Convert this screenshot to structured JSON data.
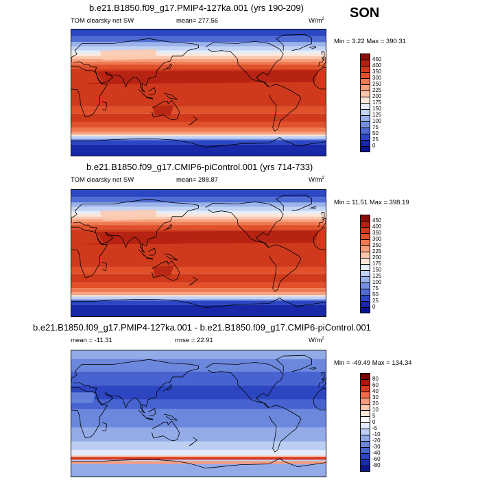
{
  "season": "SON",
  "panels": [
    {
      "title": "b.e21.B1850.f09_g17.PMIP4-127ka.001 (yrs 190-209)",
      "left_label": "TOM clearsky net SW",
      "center_label": "mean= 277.56",
      "units": "W/m",
      "units_sup": "2",
      "minmax": "Min =   3.22 Max = 390.31",
      "map_type": "absolute",
      "colorbar_labels": [
        "450",
        "400",
        "350",
        "300",
        "250",
        "225",
        "200",
        "175",
        "150",
        "125",
        "100",
        "75",
        "50",
        "25",
        "0"
      ],
      "colorbar_colors": [
        "#8b0d0b",
        "#b22012",
        "#d03a1c",
        "#e0512b",
        "#ee7a52",
        "#f6a07d",
        "#fbc8ae",
        "#fde7da",
        "#e5ecfa",
        "#c1d2f4",
        "#9bb3ea",
        "#7690df",
        "#4f6bd4",
        "#2b47c3",
        "#1828a6",
        "#0b148c"
      ]
    },
    {
      "title": "b.e21.B1850.f09_g17.CMIP6-piControl.001 (yrs 714-733)",
      "left_label": "TOM clearsky net SW",
      "center_label": "mean= 288.87",
      "units": "W/m",
      "units_sup": "2",
      "minmax": "Min =  11.51 Max = 398.19",
      "map_type": "absolute",
      "colorbar_labels": [
        "450",
        "400",
        "350",
        "300",
        "250",
        "225",
        "200",
        "175",
        "150",
        "125",
        "100",
        "75",
        "50",
        "25",
        "0"
      ],
      "colorbar_colors": [
        "#8b0d0b",
        "#b22012",
        "#d03a1c",
        "#e0512b",
        "#ee7a52",
        "#f6a07d",
        "#fbc8ae",
        "#fde7da",
        "#e5ecfa",
        "#c1d2f4",
        "#9bb3ea",
        "#7690df",
        "#4f6bd4",
        "#2b47c3",
        "#1828a6",
        "#0b148c"
      ]
    },
    {
      "title": "b.e21.B1850.f09_g17.PMIP4-127ka.001 - b.e21.B1850.f09_g17.CMIP6-piControl.001",
      "left_label": "mean = -11.31",
      "center_label": "rmse =  22.91",
      "units": "W/m",
      "units_sup": "2",
      "minmax": "Min = -49.49 Max = 134.34",
      "map_type": "diff",
      "colorbar_labels": [
        "80",
        "60",
        "40",
        "30",
        "20",
        "10",
        "5",
        "0",
        "-5",
        "-10",
        "-20",
        "-30",
        "-40",
        "-60",
        "-80"
      ],
      "colorbar_colors": [
        "#7a0000",
        "#b3140e",
        "#d83a22",
        "#ee6a48",
        "#f69a7c",
        "#fbc6b0",
        "#fde6da",
        "#ffffff",
        "#e2eafb",
        "#bccff3",
        "#93ace8",
        "#6b88dc",
        "#4663d0",
        "#2c45c0",
        "#1a2da8",
        "#0d178c"
      ]
    }
  ],
  "chart_data": [
    {
      "type": "heatmap",
      "title": "b.e21.B1850.f09_g17.PMIP4-127ka.001 (yrs 190-209)",
      "variable": "TOM clearsky net SW",
      "units": "W/m2",
      "mean": 277.56,
      "min": 3.22,
      "max": 390.31,
      "levels": [
        0,
        25,
        50,
        75,
        100,
        125,
        150,
        175,
        200,
        225,
        250,
        300,
        350,
        400,
        450
      ]
    },
    {
      "type": "heatmap",
      "title": "b.e21.B1850.f09_g17.CMIP6-piControl.001 (yrs 714-733)",
      "variable": "TOM clearsky net SW",
      "units": "W/m2",
      "mean": 288.87,
      "min": 11.51,
      "max": 398.19,
      "levels": [
        0,
        25,
        50,
        75,
        100,
        125,
        150,
        175,
        200,
        225,
        250,
        300,
        350,
        400,
        450
      ]
    },
    {
      "type": "heatmap",
      "title": "b.e21.B1850.f09_g17.PMIP4-127ka.001 - b.e21.B1850.f09_g17.CMIP6-piControl.001",
      "units": "W/m2",
      "mean": -11.31,
      "rmse": 22.91,
      "min": -49.49,
      "max": 134.34,
      "levels": [
        -80,
        -60,
        -40,
        -30,
        -20,
        -10,
        -5,
        0,
        5,
        10,
        20,
        30,
        40,
        60,
        80
      ]
    }
  ]
}
